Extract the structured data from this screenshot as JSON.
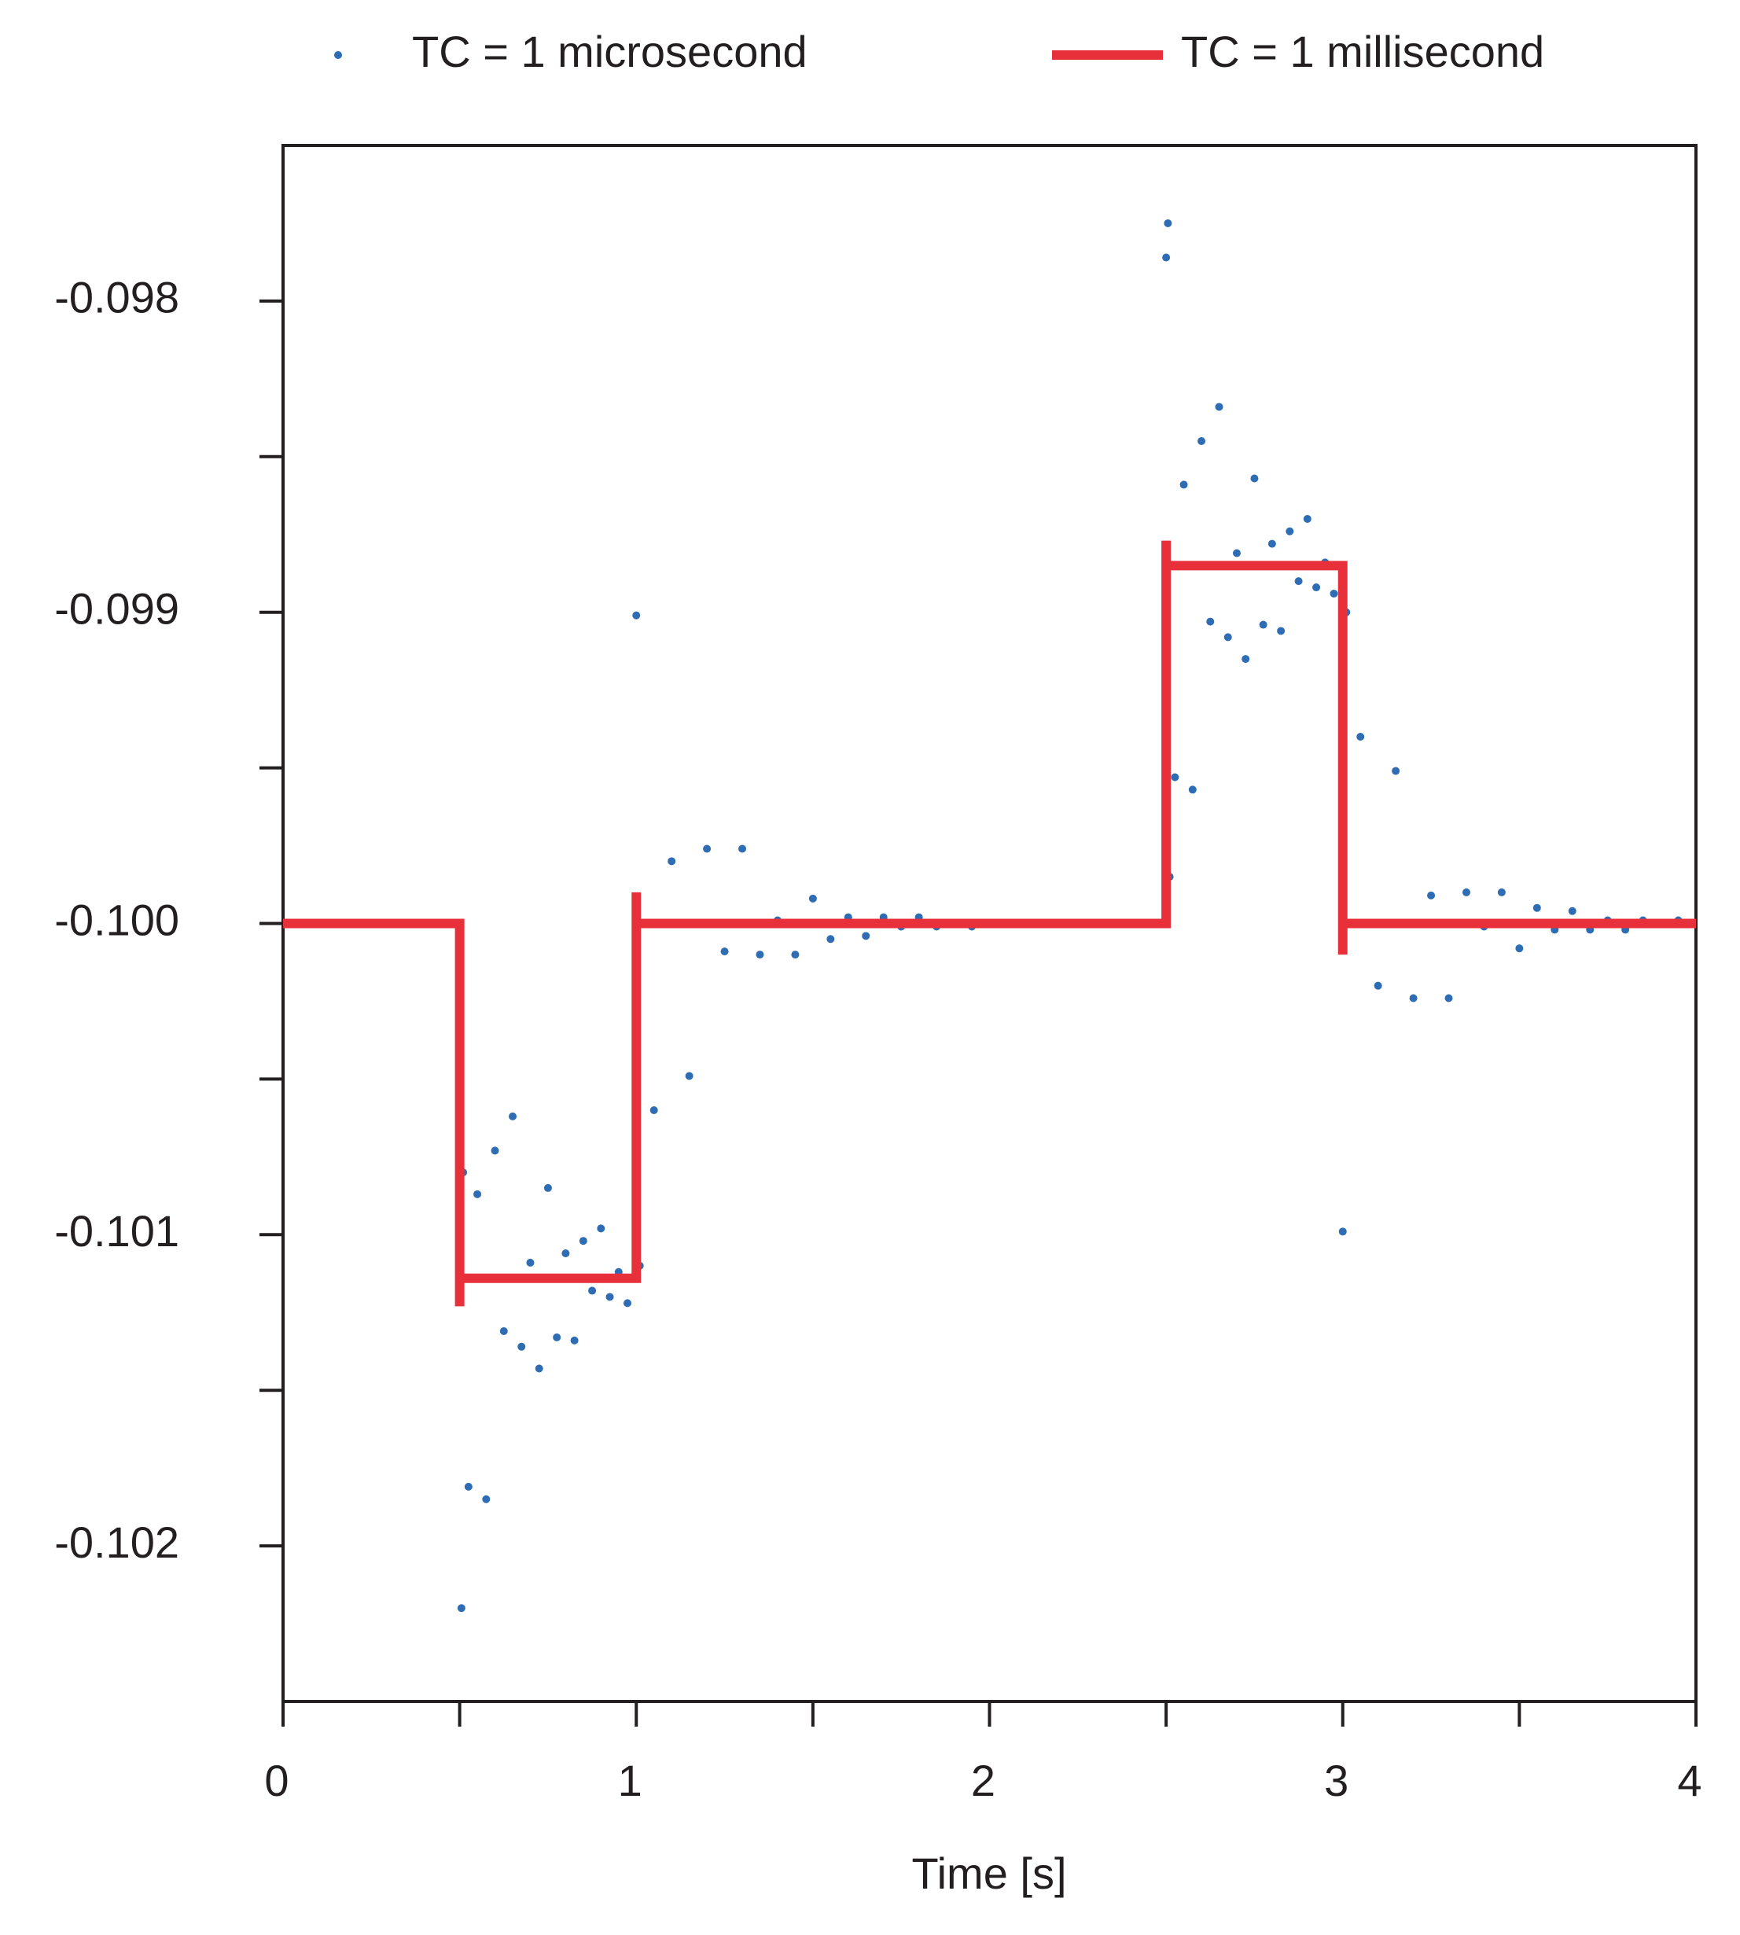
{
  "chart_data": {
    "type": "scatter",
    "xlabel": "Time [s]",
    "xlim": [
      0,
      4
    ],
    "xticks": [
      0,
      1,
      2,
      3,
      4
    ],
    "xminorticks": [
      0.5,
      1.5,
      2.5,
      3.5
    ],
    "ylim": [
      -0.1025,
      -0.0975
    ],
    "yticks": [
      {
        "value": -0.098,
        "label": "-0.098"
      },
      {
        "value": -0.099,
        "label": "-0.099"
      },
      {
        "value": -0.1,
        "label": "-0.100"
      },
      {
        "value": -0.101,
        "label": "-0.101"
      },
      {
        "value": -0.102,
        "label": "-0.102"
      }
    ],
    "yminorticks": [
      -0.0985,
      -0.0995,
      -0.1005,
      -0.1015
    ],
    "legend": "top",
    "series": [
      {
        "name": "TC = 1 microsecond",
        "type": "scatter",
        "color": "#2e6db4",
        "x": [
          0.505,
          0.51,
          0.5,
          0.525,
          0.55,
          0.575,
          0.6,
          0.625,
          0.65,
          0.675,
          0.7,
          0.725,
          0.75,
          0.775,
          0.8,
          0.825,
          0.85,
          0.875,
          0.9,
          0.925,
          0.95,
          0.975,
          1.01,
          1.0,
          1.05,
          1.1,
          1.15,
          1.2,
          1.25,
          1.3,
          1.35,
          1.4,
          1.45,
          1.5,
          1.55,
          1.6,
          1.65,
          1.7,
          1.75,
          1.8,
          1.85,
          1.9,
          1.95,
          2.1,
          2.2,
          2.3,
          2.4,
          2.505,
          2.51,
          2.5,
          2.525,
          2.55,
          2.575,
          2.6,
          2.625,
          2.65,
          2.675,
          2.7,
          2.725,
          2.75,
          2.775,
          2.8,
          2.825,
          2.85,
          2.875,
          2.9,
          2.925,
          2.95,
          2.975,
          3.01,
          3.0,
          3.05,
          3.1,
          3.15,
          3.2,
          3.25,
          3.3,
          3.35,
          3.4,
          3.45,
          3.5,
          3.55,
          3.6,
          3.65,
          3.7,
          3.75,
          3.8,
          3.85,
          3.9,
          3.95
        ],
        "y": [
          -0.1022,
          -0.1008,
          -0.10014,
          -0.10181,
          -0.10087,
          -0.10185,
          -0.10073,
          -0.10131,
          -0.10062,
          -0.10136,
          -0.10109,
          -0.10143,
          -0.10085,
          -0.10133,
          -0.10106,
          -0.10134,
          -0.10102,
          -0.10118,
          -0.10098,
          -0.1012,
          -0.10112,
          -0.10122,
          -0.1011,
          -0.09901,
          -0.1006,
          -0.0998,
          -0.10049,
          -0.09976,
          -0.10009,
          -0.09976,
          -0.1001,
          -0.09999,
          -0.1001,
          -0.09992,
          -0.10005,
          -0.09998,
          -0.10004,
          -0.09998,
          -0.10001,
          -0.09998,
          -0.10001,
          -0.1,
          -0.10001,
          -0.1,
          -0.1,
          -0.1,
          -0.1,
          -0.09775,
          -0.09985,
          -0.09786,
          -0.09953,
          -0.09859,
          -0.09957,
          -0.09845,
          -0.09903,
          -0.09834,
          -0.09908,
          -0.09881,
          -0.09915,
          -0.09857,
          -0.09904,
          -0.09878,
          -0.09906,
          -0.09874,
          -0.0989,
          -0.0987,
          -0.09892,
          -0.09884,
          -0.09894,
          -0.099,
          -0.10099,
          -0.0994,
          -0.1002,
          -0.09951,
          -0.10024,
          -0.09991,
          -0.10024,
          -0.0999,
          -0.10001,
          -0.0999,
          -0.10008,
          -0.09995,
          -0.10002,
          -0.09996,
          -0.10002,
          -0.09999,
          -0.10002,
          -0.09999,
          -0.1,
          -0.09999
        ]
      },
      {
        "name": "TC = 1 millisecond",
        "type": "line",
        "color": "#e8303a",
        "x": [
          0,
          0.5,
          0.5,
          0.5,
          1,
          1,
          1,
          2.5,
          2.5,
          2.5,
          3,
          3,
          3,
          4
        ],
        "y": [
          -0.1,
          -0.1,
          -0.10123,
          -0.10114,
          -0.10114,
          -0.0999,
          -0.1,
          -0.1,
          -0.09877,
          -0.09885,
          -0.09885,
          -0.1001,
          -0.1,
          -0.1
        ]
      }
    ]
  }
}
